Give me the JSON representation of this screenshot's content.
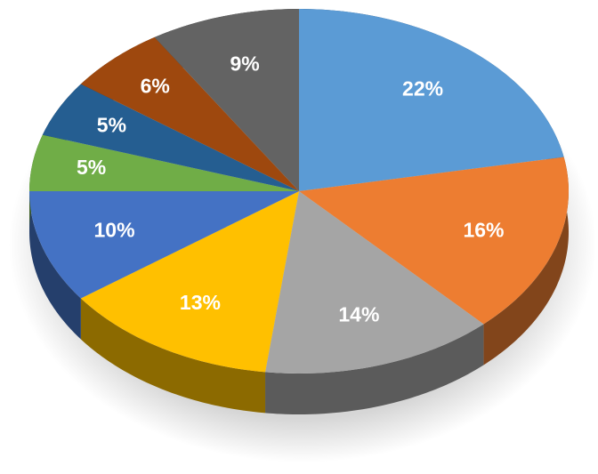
{
  "chart_data": {
    "type": "pie3d",
    "series": [
      {
        "values": [
          22,
          16,
          14,
          13,
          10,
          5,
          5,
          6,
          9
        ],
        "value_labels": [
          "22%",
          "16%",
          "14%",
          "13%",
          "10%",
          "5%",
          "5%",
          "6%",
          "9%"
        ],
        "colors": [
          "#5b9bd5",
          "#ed7d31",
          "#a5a5a5",
          "#ffc000",
          "#4472c4",
          "#70ad47",
          "#255e91",
          "#9e480e",
          "#636363"
        ]
      }
    ]
  }
}
